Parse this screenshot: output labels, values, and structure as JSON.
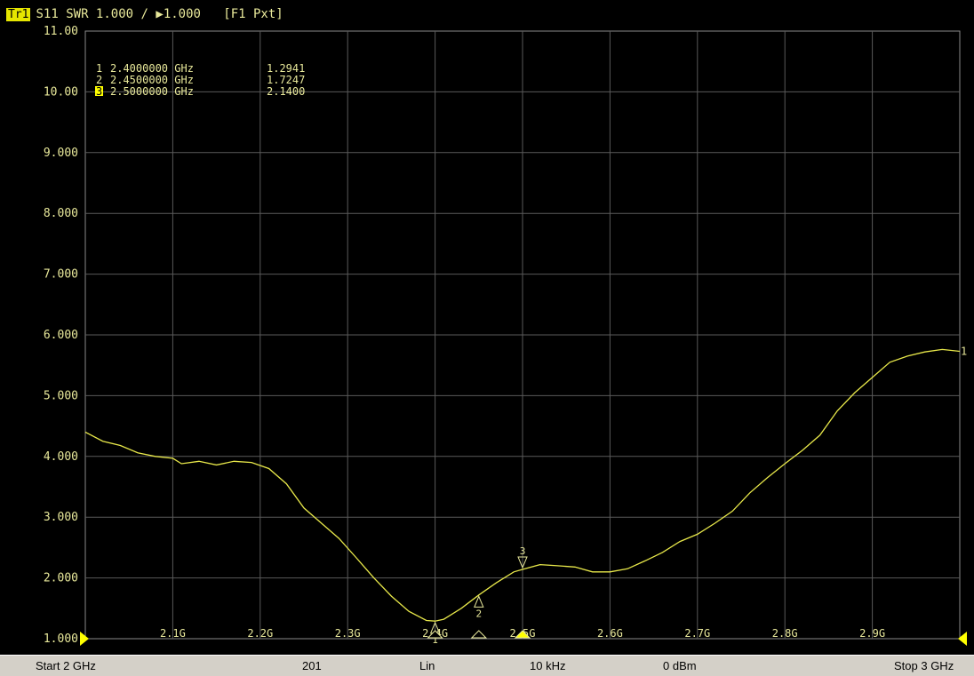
{
  "header": {
    "trace_label": "Tr1",
    "measurement": "S11",
    "format": "SWR 1.000 /",
    "ref_value": "1.000",
    "channel_info": "[F1 Pxt]"
  },
  "colors": {
    "background": "#000000",
    "trace": "#e8e84a",
    "grid": "#5a5a5a",
    "text": "#e8e89a",
    "marker_arrow": "#ffff00",
    "status_bar": "#d4d0c8"
  },
  "markers": [
    {
      "id": "1",
      "freq": "2.4000000 GHz",
      "value": "1.2941"
    },
    {
      "id": "2",
      "freq": "2.4500000 GHz",
      "value": "1.7247"
    },
    {
      "id": "3",
      "freq": "2.5000000 GHz",
      "value": "2.1400",
      "active": true
    }
  ],
  "status": {
    "start": "Start 2 GHz",
    "points": "201",
    "sweep_type": "Lin",
    "if_bandwidth": "10 kHz",
    "power": "0 dBm",
    "stop": "Stop 3 GHz"
  },
  "chart_data": {
    "type": "line",
    "title": "",
    "xlabel": "",
    "ylabel": "",
    "xlim": [
      2.0,
      3.0
    ],
    "ylim": [
      1.0,
      11.0
    ],
    "grid": true,
    "x_ticks": [
      2.1,
      2.2,
      2.3,
      2.4,
      2.5,
      2.6,
      2.7,
      2.8,
      2.9
    ],
    "x_tick_labels": [
      "2.1G",
      "2.2G",
      "2.3G",
      "2.4G",
      "2.5G",
      "2.6G",
      "2.7G",
      "2.8G",
      "2.9G"
    ],
    "y_ticks": [
      1,
      2,
      3,
      4,
      5,
      6,
      7,
      8,
      9,
      10,
      11
    ],
    "y_tick_labels": [
      "1.000",
      "2.000",
      "3.000",
      "4.000",
      "5.000",
      "6.000",
      "7.000",
      "8.000",
      "9.000",
      "10.00",
      "11.00"
    ],
    "series": [
      {
        "name": "Tr1",
        "x": [
          2.0,
          2.02,
          2.04,
          2.06,
          2.08,
          2.1,
          2.11,
          2.13,
          2.15,
          2.17,
          2.19,
          2.21,
          2.23,
          2.25,
          2.27,
          2.29,
          2.31,
          2.33,
          2.35,
          2.37,
          2.39,
          2.4,
          2.41,
          2.43,
          2.45,
          2.47,
          2.49,
          2.5,
          2.52,
          2.54,
          2.56,
          2.58,
          2.6,
          2.62,
          2.64,
          2.66,
          2.68,
          2.7,
          2.72,
          2.74,
          2.76,
          2.78,
          2.8,
          2.82,
          2.84,
          2.86,
          2.88,
          2.9,
          2.92,
          2.94,
          2.96,
          2.98,
          3.0
        ],
        "y": [
          4.4,
          4.25,
          4.18,
          4.06,
          4.0,
          3.97,
          3.88,
          3.92,
          3.86,
          3.92,
          3.9,
          3.8,
          3.55,
          3.15,
          2.9,
          2.65,
          2.33,
          2.0,
          1.7,
          1.45,
          1.3,
          1.29,
          1.32,
          1.5,
          1.72,
          1.92,
          2.1,
          2.14,
          2.22,
          2.2,
          2.18,
          2.1,
          2.1,
          2.15,
          2.28,
          2.42,
          2.6,
          2.72,
          2.9,
          3.1,
          3.4,
          3.65,
          3.88,
          4.1,
          4.35,
          4.75,
          5.05,
          5.3,
          5.55,
          5.65,
          5.72,
          5.76,
          5.73
        ]
      }
    ],
    "end_label": "1",
    "marker_points": [
      {
        "id": "1",
        "x": 2.4,
        "y": 1.2941
      },
      {
        "id": "2",
        "x": 2.45,
        "y": 1.7247
      },
      {
        "id": "3",
        "x": 2.5,
        "y": 2.14
      }
    ],
    "axis_markers_x": [
      2.4,
      2.45,
      2.5
    ]
  }
}
